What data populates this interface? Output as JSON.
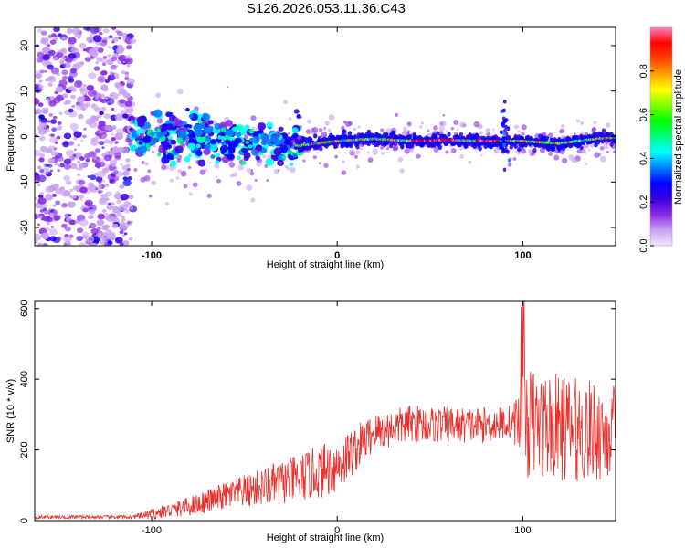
{
  "title": "S126.2026.053.11.36.C43",
  "chart_data": [
    {
      "type": "heatmap",
      "name": "spectrogram",
      "xlabel": "Height of straight line (km)",
      "ylabel": "Frequency (Hz)",
      "xlim": [
        -163,
        150
      ],
      "ylim": [
        -24,
        24
      ],
      "xticks": [
        -100,
        0,
        100
      ],
      "xtick_labels": [
        "-100",
        "0",
        "100"
      ],
      "yticks": [
        -20,
        -10,
        0,
        10,
        20
      ],
      "ytick_labels": [
        "-20",
        "-10",
        "0",
        "10",
        "20"
      ],
      "colorbar": {
        "label": "Normalized spectral amplitude",
        "range": [
          0.0,
          1.0
        ],
        "ticks": [
          0.0,
          0.2,
          0.4,
          0.6,
          0.8
        ],
        "tick_labels": [
          "0.0",
          "0.2",
          "0.4",
          "0.6",
          "0.8"
        ],
        "colors": [
          "#f4e6ff",
          "#c8a0f0",
          "#8a2be2",
          "#3a00e0",
          "#0000ff",
          "#0080ff",
          "#00ffff",
          "#00ff80",
          "#00ff00",
          "#80ff00",
          "#ffff00",
          "#ffa000",
          "#ff4000",
          "#ff0000",
          "#ff80c0"
        ]
      },
      "ridge_points": [
        [
          -20,
          -2
        ],
        [
          0,
          -1
        ],
        [
          20,
          -0.5
        ],
        [
          40,
          -1
        ],
        [
          60,
          -0.8
        ],
        [
          80,
          -1
        ],
        [
          100,
          -1
        ],
        [
          120,
          -1.5
        ],
        [
          140,
          -0.5
        ],
        [
          150,
          -0.2
        ]
      ]
    },
    {
      "type": "line",
      "name": "snr",
      "xlabel": "Height of straight line (km)",
      "ylabel": "SNR (10 * v/v)",
      "xlim": [
        -163,
        150
      ],
      "ylim": [
        0,
        620
      ],
      "xticks": [
        -100,
        0,
        100
      ],
      "xtick_labels": [
        "-100",
        "0",
        "100"
      ],
      "yticks": [
        0,
        200,
        400,
        600
      ],
      "ytick_labels": [
        "0",
        "200",
        "400",
        "600"
      ],
      "color": "#e8302c",
      "trend_x": [
        -163,
        -110,
        -100,
        -80,
        -60,
        -40,
        -20,
        0,
        20,
        40,
        60,
        80,
        95,
        100,
        110,
        130,
        150
      ],
      "trend_y": [
        10,
        10,
        18,
        40,
        70,
        95,
        120,
        155,
        250,
        275,
        270,
        270,
        280,
        280,
        270,
        255,
        250
      ],
      "noise_x": [
        -163,
        -110,
        -100,
        -60,
        -20,
        0,
        20,
        95,
        100,
        150
      ],
      "noise_y": [
        5,
        5,
        15,
        40,
        70,
        80,
        55,
        50,
        160,
        140
      ]
    }
  ]
}
